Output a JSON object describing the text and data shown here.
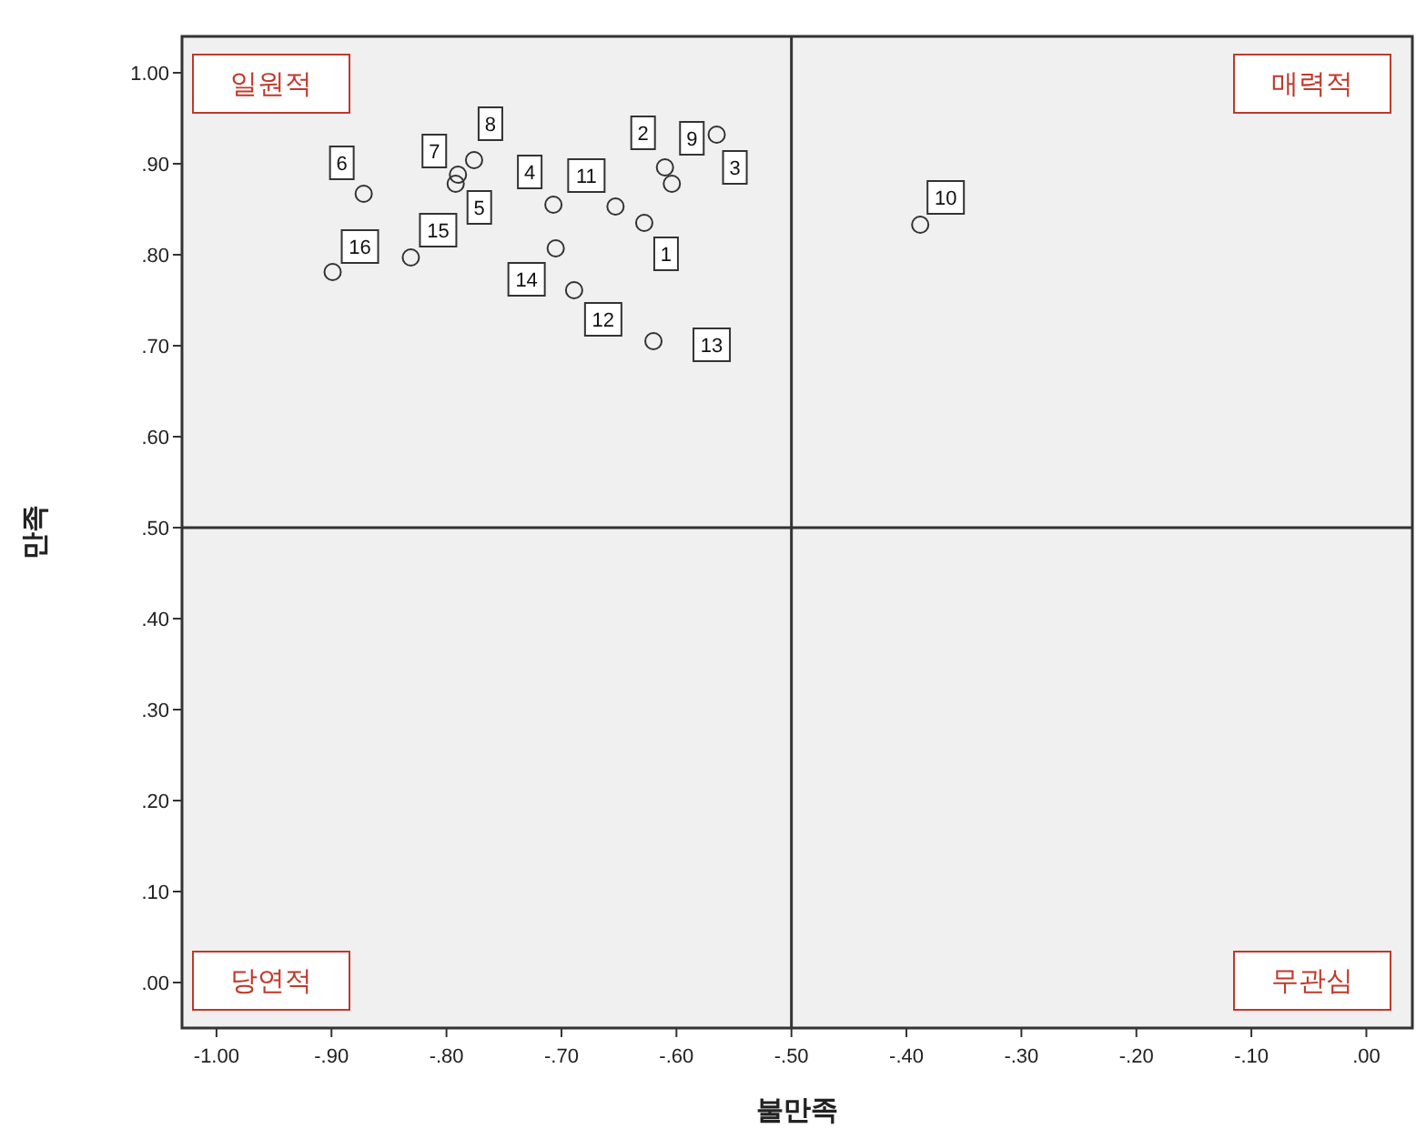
{
  "chart_data": {
    "type": "scatter",
    "xlabel": "불만족",
    "ylabel": "만족",
    "x": [
      -0.628,
      -0.61,
      -0.565,
      -0.707,
      -0.792,
      -0.872,
      -0.79,
      -0.776,
      -0.604,
      -0.388,
      -0.653,
      -0.689,
      -0.62,
      -0.705,
      -0.831,
      -0.899
    ],
    "series": [
      {
        "color": "#333333",
        "values": [
          0.835,
          0.896,
          0.932,
          0.855,
          0.878,
          0.867,
          0.888,
          0.904,
          0.878,
          0.833,
          0.853,
          0.761,
          0.705,
          0.807,
          0.797,
          0.781
        ]
      }
    ],
    "marker": "circle",
    "grid": false,
    "xlim": [
      -1.03,
      0.04
    ],
    "ylim": [
      -0.05,
      1.04
    ],
    "xticks": [
      {
        "value": -1,
        "label": "-1.00"
      },
      {
        "value": -0.9,
        "label": "-.90"
      },
      {
        "value": -0.8,
        "label": "-.80"
      },
      {
        "value": -0.7,
        "label": "-.70"
      },
      {
        "value": -0.6,
        "label": "-.60"
      },
      {
        "value": -0.5,
        "label": "-.50"
      },
      {
        "value": -0.4,
        "label": "-.40"
      },
      {
        "value": -0.3,
        "label": "-.30"
      },
      {
        "value": -0.2,
        "label": "-.20"
      },
      {
        "value": -0.1,
        "label": "-.10"
      },
      {
        "value": 0,
        "label": ".00"
      }
    ],
    "yticks": [
      {
        "value": 0,
        "label": ".00"
      },
      {
        "value": 0.1,
        "label": ".10"
      },
      {
        "value": 0.2,
        "label": ".20"
      },
      {
        "value": 0.3,
        "label": ".30"
      },
      {
        "value": 0.4,
        "label": ".40"
      },
      {
        "value": 0.5,
        "label": ".50"
      },
      {
        "value": 0.6,
        "label": ".60"
      },
      {
        "value": 0.7,
        "label": ".70"
      },
      {
        "value": 0.8,
        "label": ".80"
      },
      {
        "value": 0.9,
        "label": ".90"
      },
      {
        "value": 1,
        "label": "1.00"
      }
    ],
    "ref_lines": [
      {
        "axis": "x",
        "value": -0.5,
        "color": "#333333"
      },
      {
        "axis": "y",
        "value": 0.5,
        "color": "#333333"
      }
    ],
    "annotations": [
      "일원적",
      "매력적",
      "당연적",
      "무관심",
      {
        "text": "1",
        "x": -0.628,
        "y": 0.835
      },
      {
        "text": "2",
        "x": -0.61,
        "y": 0.896
      },
      {
        "text": "3",
        "x": -0.565,
        "y": 0.932
      },
      {
        "text": "4",
        "x": -0.707,
        "y": 0.855
      },
      {
        "text": "5",
        "x": -0.792,
        "y": 0.878
      },
      {
        "text": "6",
        "x": -0.872,
        "y": 0.867
      },
      {
        "text": "7",
        "x": -0.79,
        "y": 0.888
      },
      {
        "text": "8",
        "x": -0.776,
        "y": 0.904
      },
      {
        "text": "9",
        "x": -0.604,
        "y": 0.878
      },
      {
        "text": "10",
        "x": -0.388,
        "y": 0.833
      },
      {
        "text": "11",
        "x": -0.653,
        "y": 0.853
      },
      {
        "text": "12",
        "x": -0.689,
        "y": 0.761
      },
      {
        "text": "13",
        "x": -0.62,
        "y": 0.705
      },
      {
        "text": "14",
        "x": -0.705,
        "y": 0.807
      },
      {
        "text": "15",
        "x": -0.831,
        "y": 0.797
      },
      {
        "text": "16",
        "x": -0.899,
        "y": 0.781
      }
    ]
  }
}
